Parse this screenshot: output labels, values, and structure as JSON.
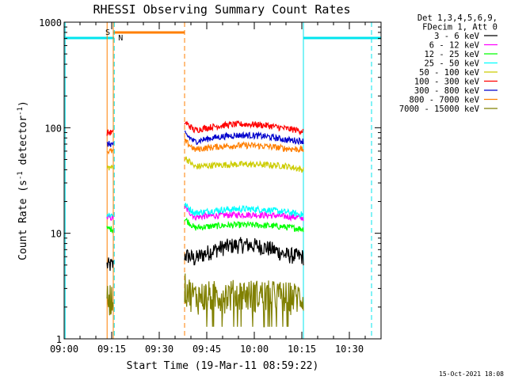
{
  "chart_data": {
    "type": "line",
    "title": "RHESSI Observing Summary Count Rates",
    "xlabel": "Start Time (19-Mar-11 08:59:22)",
    "ylabel_prefix": "Count Rate (s",
    "ylabel_mid": " detector",
    "ylabel_suffix": ")",
    "ylabel_exp": "-1",
    "yscale": "log",
    "ylim": [
      1,
      1000
    ],
    "yticks": [
      {
        "value": 1,
        "label": "1"
      },
      {
        "value": 10,
        "label": "10"
      },
      {
        "value": 100,
        "label": "100"
      },
      {
        "value": 1000,
        "label": "1000"
      }
    ],
    "xlim_minutes": [
      0,
      100
    ],
    "xticks": [
      {
        "minute": 0,
        "label": "09:00"
      },
      {
        "minute": 15,
        "label": "09:15"
      },
      {
        "minute": 30,
        "label": "09:30"
      },
      {
        "minute": 45,
        "label": "09:45"
      },
      {
        "minute": 60,
        "label": "10:00"
      },
      {
        "minute": 75,
        "label": "10:15"
      },
      {
        "minute": 90,
        "label": "10:30"
      }
    ],
    "legend_header": [
      "Det 1,3,4,5,6,9,",
      "FDecim 1, Att 0"
    ],
    "legend_placement": "right",
    "series": [
      {
        "name": "3 - 6 keV",
        "color": "#000000",
        "levels": [
          5,
          7.8,
          6
        ]
      },
      {
        "name": "6 - 12 keV",
        "color": "#ff00ff",
        "levels": [
          14,
          15,
          14
        ]
      },
      {
        "name": "12 - 25 keV",
        "color": "#00ff00",
        "levels": [
          11,
          12,
          11
        ]
      },
      {
        "name": "25 - 50 keV",
        "color": "#00ffff",
        "levels": [
          15,
          17,
          15
        ]
      },
      {
        "name": "50 - 100 keV",
        "color": "#cccc00",
        "levels": [
          42,
          45,
          40
        ]
      },
      {
        "name": "100 - 300 keV",
        "color": "#ff0000",
        "levels": [
          90,
          108,
          93
        ]
      },
      {
        "name": "300 - 800 keV",
        "color": "#0000cc",
        "levels": [
          70,
          85,
          75
        ]
      },
      {
        "name": "800 - 7000 keV",
        "color": "#ff7f00",
        "levels": [
          60,
          68,
          62
        ]
      },
      {
        "name": "7000 - 15000 keV",
        "color": "#808000",
        "levels": [
          2.5,
          2.7,
          2.5
        ]
      }
    ],
    "data_segments_minutes": [
      [
        13.5,
        15.5
      ],
      [
        38,
        75.5
      ]
    ],
    "annotations": {
      "saa": {
        "label": "S",
        "start": 15.5,
        "end": 38
      },
      "night": [
        {
          "label": "N",
          "start": 15.8,
          "end": 75.5
        }
      ],
      "night_bar_segments": [
        [
          0,
          15.8
        ],
        [
          75.5,
          100
        ]
      ]
    },
    "timestamp": "15-Oct-2021 18:08"
  }
}
